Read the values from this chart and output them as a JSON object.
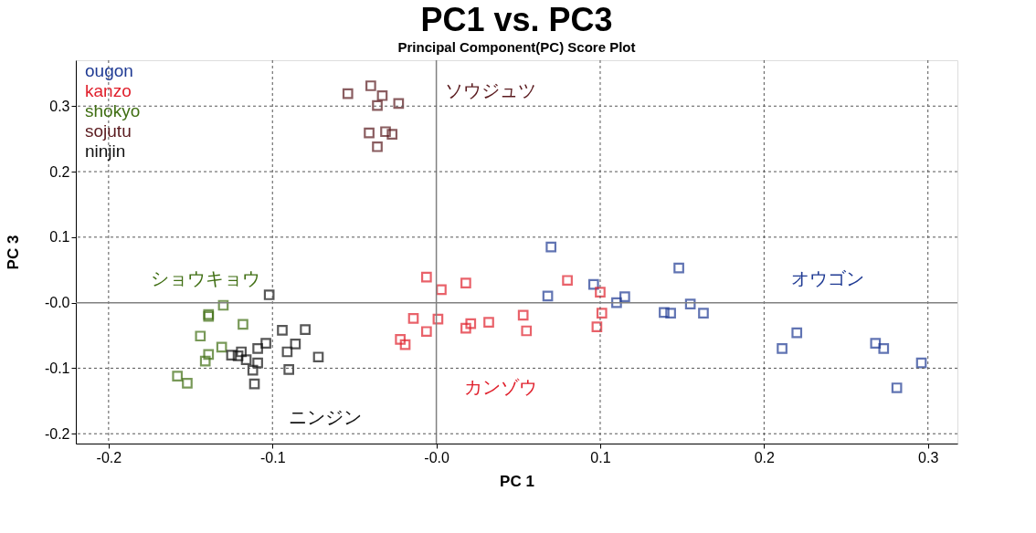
{
  "chart_data": {
    "type": "scatter",
    "title": "PC1 vs. PC3",
    "subtitle": "Principal Component(PC) Score Plot",
    "xlabel": "PC 1",
    "ylabel": "PC 3",
    "xlim": [
      -0.22,
      0.318
    ],
    "ylim": [
      -0.215,
      0.37
    ],
    "xticks": [
      -0.2,
      -0.1,
      {
        "value": 0,
        "label": "-0.0"
      },
      0.1,
      0.2,
      0.3
    ],
    "yticks": [
      -0.2,
      -0.1,
      {
        "value": 0,
        "label": "-0.0"
      },
      0.1,
      0.2,
      0.3
    ],
    "grid": true,
    "legend": "top left",
    "marker": "square",
    "series": [
      {
        "name": "ougon",
        "color": "#1f3a93",
        "x": [
          0.07,
          0.068,
          0.096,
          0.11,
          0.115,
          0.139,
          0.143,
          0.148,
          0.155,
          0.163,
          0.211,
          0.22,
          0.268,
          0.273,
          0.296,
          0.281
        ],
        "values": [
          0.085,
          0.01,
          0.028,
          0.0,
          0.009,
          -0.015,
          -0.016,
          0.053,
          -0.002,
          -0.016,
          -0.07,
          -0.046,
          -0.062,
          -0.07,
          -0.092,
          -0.13
        ]
      },
      {
        "name": "kanzo",
        "color": "#e0202c",
        "x": [
          -0.006,
          0.003,
          0.018,
          -0.014,
          0.001,
          -0.006,
          -0.022,
          -0.019,
          0.021,
          0.018,
          0.032,
          0.053,
          0.055,
          0.08,
          0.1,
          0.101,
          0.098
        ],
        "values": [
          0.039,
          0.02,
          0.03,
          -0.024,
          -0.025,
          -0.044,
          -0.056,
          -0.064,
          -0.032,
          -0.039,
          -0.03,
          -0.019,
          -0.043,
          0.034,
          0.016,
          -0.016,
          -0.037
        ]
      },
      {
        "name": "shokyo",
        "color": "#3f6e12",
        "x": [
          -0.13,
          -0.139,
          -0.139,
          -0.118,
          -0.144,
          -0.131,
          -0.139,
          -0.141,
          -0.158,
          -0.152
        ],
        "values": [
          -0.004,
          -0.018,
          -0.021,
          -0.033,
          -0.051,
          -0.068,
          -0.079,
          -0.089,
          -0.112,
          -0.123
        ]
      },
      {
        "name": "sojutu",
        "color": "#5a1a1e",
        "x": [
          -0.054,
          -0.04,
          -0.033,
          -0.036,
          -0.023,
          -0.041,
          -0.031,
          -0.027,
          -0.036
        ],
        "values": [
          0.319,
          0.331,
          0.316,
          0.301,
          0.304,
          0.259,
          0.261,
          0.257,
          0.238
        ]
      },
      {
        "name": "ninjin",
        "color": "#111111",
        "x": [
          -0.102,
          -0.094,
          -0.08,
          -0.104,
          -0.086,
          -0.091,
          -0.072,
          -0.109,
          -0.119,
          -0.125,
          -0.121,
          -0.116,
          -0.109,
          -0.112,
          -0.09,
          -0.111
        ],
        "values": [
          0.012,
          -0.042,
          -0.041,
          -0.062,
          -0.063,
          -0.075,
          -0.083,
          -0.07,
          -0.075,
          -0.08,
          -0.081,
          -0.087,
          -0.092,
          -0.103,
          -0.102,
          -0.124
        ]
      }
    ],
    "annotations": [
      "オウゴン",
      "カンゾウ",
      "ショウキョウ",
      "ソウジュツ",
      "ニンジン"
    ]
  }
}
